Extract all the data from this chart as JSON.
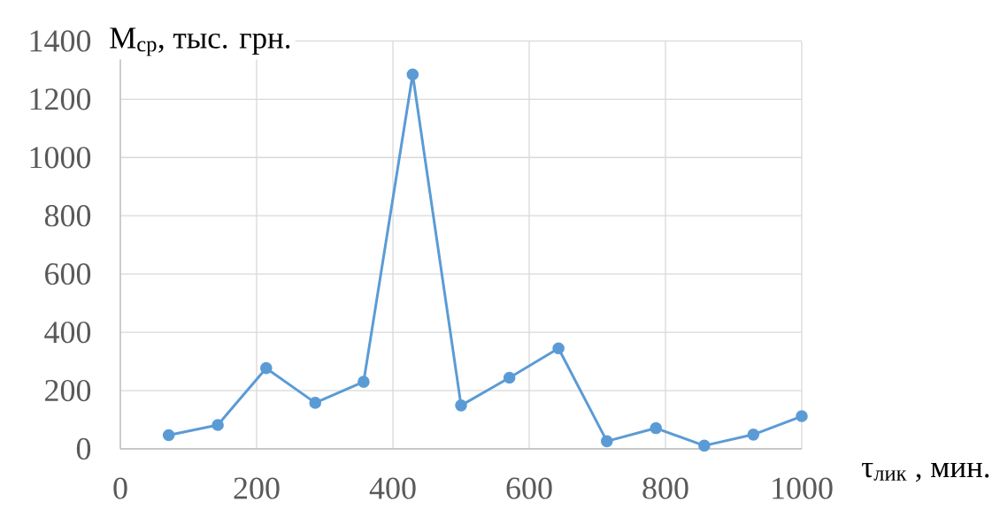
{
  "chart_data": {
    "type": "line",
    "xlabel": "τ$_{лик}$ , мин.",
    "ylabel": "М$_{ср}$, тыс. грн.",
    "x": [
      71,
      143,
      214,
      286,
      357,
      429,
      500,
      571,
      643,
      714,
      786,
      857,
      929,
      1000
    ],
    "series": [
      {
        "color": "#5b9bd5",
        "values": [
          47,
          82,
          277,
          158,
          230,
          1285,
          149,
          244,
          345,
          26,
          71,
          11,
          49,
          112
        ]
      }
    ],
    "xlim": [
      0,
      1000
    ],
    "ylim": [
      0,
      1400
    ],
    "xticks": [
      0,
      200,
      400,
      600,
      800,
      1000
    ],
    "yticks": [
      0,
      200,
      400,
      600,
      800,
      1000,
      1200,
      1400
    ],
    "grid": true,
    "marker": "circle",
    "line_style": "solid"
  }
}
